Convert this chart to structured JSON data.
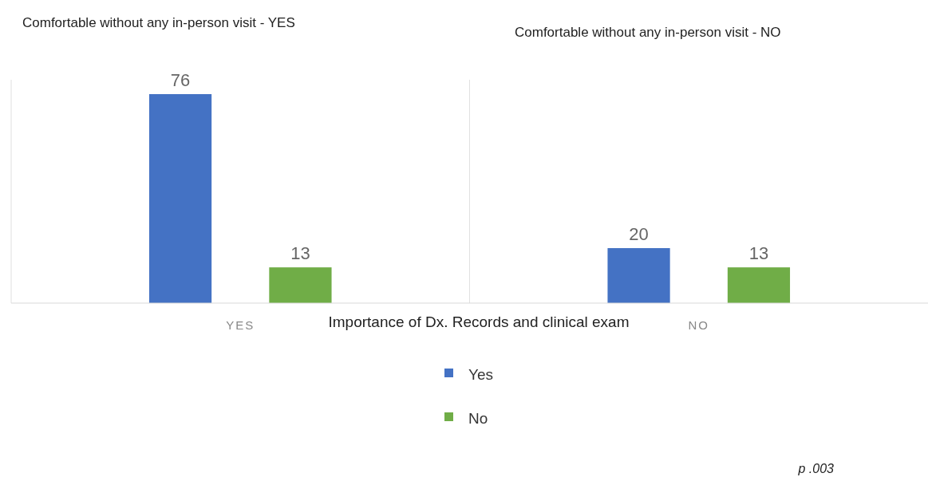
{
  "chart_data": {
    "type": "bar",
    "xlabel": "Importance of Dx. Records and clinical exam",
    "categories": [
      "YES",
      "NO"
    ],
    "series": [
      {
        "name": "Yes",
        "color": "#4472c4",
        "values": [
          76,
          20
        ]
      },
      {
        "name": "No",
        "color": "#70ad47",
        "values": [
          13,
          13
        ]
      }
    ],
    "data_labels": true,
    "legend": "bottom",
    "annotations": [
      "Comfortable without any in-person visit - YES",
      "Comfortable without any in-person visit - NO",
      "p .003"
    ]
  }
}
